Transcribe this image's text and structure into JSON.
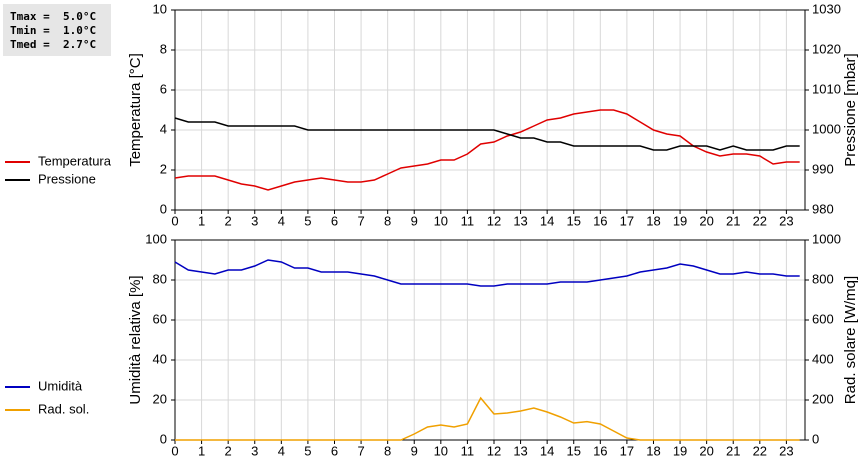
{
  "stats": [
    "Tmax =  5.0°C",
    "Tmin =  1.0°C",
    "Tmed =  2.7°C"
  ],
  "chart_data": [
    {
      "type": "line",
      "legend": "left",
      "grid": true,
      "ylabel": "Temperatura [°C]",
      "y2label": "Pressione [mbar]",
      "x": [
        0,
        0.5,
        1,
        1.5,
        2,
        2.5,
        3,
        3.5,
        4,
        4.5,
        5,
        5.5,
        6,
        6.5,
        7,
        7.5,
        8,
        8.5,
        9,
        9.5,
        10,
        10.5,
        11,
        11.5,
        12,
        12.5,
        13,
        13.5,
        14,
        14.5,
        15,
        15.5,
        16,
        16.5,
        17,
        17.5,
        18,
        18.5,
        19,
        19.5,
        20,
        20.5,
        21,
        21.5,
        22,
        22.5,
        23,
        23.5
      ],
      "xlim": [
        0,
        23.7
      ],
      "xticks": [
        0,
        1,
        2,
        3,
        4,
        5,
        6,
        7,
        8,
        9,
        10,
        11,
        12,
        13,
        14,
        15,
        16,
        17,
        18,
        19,
        20,
        21,
        22,
        23
      ],
      "ylim": [
        0,
        10
      ],
      "yticks": [
        0,
        2,
        4,
        6,
        8,
        10
      ],
      "y2lim": [
        980,
        1030
      ],
      "y2ticks": [
        980,
        990,
        1000,
        1010,
        1020,
        1030
      ],
      "series": [
        {
          "name": "Temperatura",
          "color": "#e00000",
          "values": [
            1.6,
            1.7,
            1.7,
            1.7,
            1.5,
            1.3,
            1.2,
            1.0,
            1.2,
            1.4,
            1.5,
            1.6,
            1.5,
            1.4,
            1.4,
            1.5,
            1.8,
            2.1,
            2.2,
            2.3,
            2.5,
            2.5,
            2.8,
            3.3,
            3.4,
            3.7,
            3.9,
            4.2,
            4.5,
            4.6,
            4.8,
            4.9,
            5.0,
            5.0,
            4.8,
            4.4,
            4.0,
            3.8,
            3.7,
            3.2,
            2.9,
            2.7,
            2.8,
            2.8,
            2.7,
            2.3,
            2.4,
            2.4
          ]
        },
        {
          "name": "Pressione",
          "color": "#000000",
          "axis": "y2",
          "values": [
            1003,
            1002,
            1002,
            1002,
            1001,
            1001,
            1001,
            1001,
            1001,
            1001,
            1000,
            1000,
            1000,
            1000,
            1000,
            1000,
            1000,
            1000,
            1000,
            1000,
            1000,
            1000,
            1000,
            1000,
            1000,
            999,
            998,
            998,
            997,
            997,
            996,
            996,
            996,
            996,
            996,
            996,
            995,
            995,
            996,
            996,
            996,
            995,
            996,
            995,
            995,
            995,
            996,
            996
          ]
        }
      ]
    },
    {
      "type": "line",
      "legend": "left",
      "grid": true,
      "ylabel": "Umidità relativa [%]",
      "y2label": "Rad. solare [W/mq]",
      "x": [
        0,
        0.5,
        1,
        1.5,
        2,
        2.5,
        3,
        3.5,
        4,
        4.5,
        5,
        5.5,
        6,
        6.5,
        7,
        7.5,
        8,
        8.5,
        9,
        9.5,
        10,
        10.5,
        11,
        11.5,
        12,
        12.5,
        13,
        13.5,
        14,
        14.5,
        15,
        15.5,
        16,
        16.5,
        17,
        17.5,
        18,
        18.5,
        19,
        19.5,
        20,
        20.5,
        21,
        21.5,
        22,
        22.5,
        23,
        23.5
      ],
      "xlim": [
        0,
        23.7
      ],
      "xticks": [
        0,
        1,
        2,
        3,
        4,
        5,
        6,
        7,
        8,
        9,
        10,
        11,
        12,
        13,
        14,
        15,
        16,
        17,
        18,
        19,
        20,
        21,
        22,
        23
      ],
      "ylim": [
        0,
        100
      ],
      "yticks": [
        0,
        20,
        40,
        60,
        80,
        100
      ],
      "y2lim": [
        0,
        1000
      ],
      "y2ticks": [
        0,
        200,
        400,
        600,
        800,
        1000
      ],
      "series": [
        {
          "name": "Umidità",
          "color": "#0000c0",
          "values": [
            89,
            85,
            84,
            83,
            85,
            85,
            87,
            90,
            89,
            86,
            86,
            84,
            84,
            84,
            83,
            82,
            80,
            78,
            78,
            78,
            78,
            78,
            78,
            77,
            77,
            78,
            78,
            78,
            78,
            79,
            79,
            79,
            80,
            81,
            82,
            84,
            85,
            86,
            88,
            87,
            85,
            83,
            83,
            84,
            83,
            83,
            82,
            82
          ]
        },
        {
          "name": "Rad. sol.",
          "color": "#f0a000",
          "axis": "y2",
          "values": [
            0,
            0,
            0,
            0,
            0,
            0,
            0,
            0,
            0,
            0,
            0,
            0,
            0,
            0,
            0,
            0,
            0,
            0,
            30,
            65,
            75,
            65,
            80,
            210,
            130,
            135,
            145,
            160,
            140,
            115,
            85,
            92,
            80,
            45,
            10,
            0,
            0,
            0,
            0,
            0,
            0,
            0,
            0,
            0,
            0,
            0,
            0,
            0
          ]
        }
      ]
    }
  ]
}
